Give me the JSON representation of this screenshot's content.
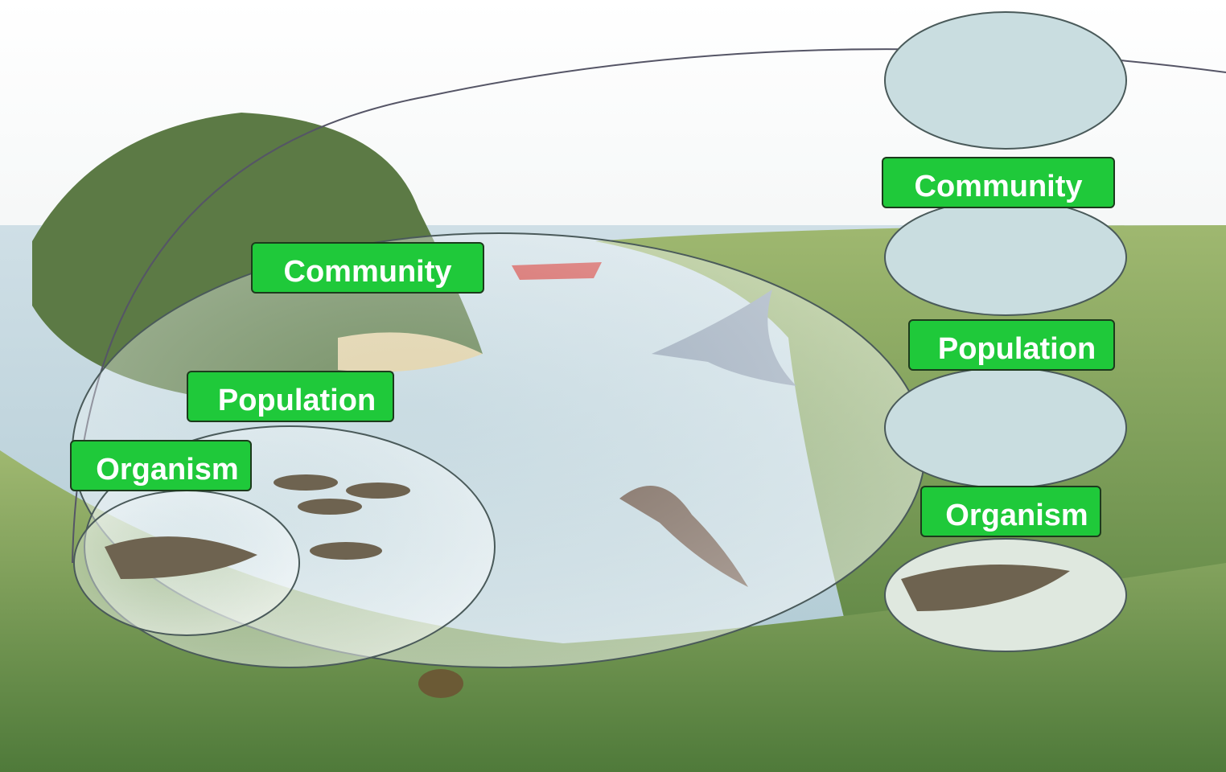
{
  "left_labels": [
    "Community",
    "Population",
    "Organism"
  ],
  "right_labels": [
    "Community",
    "Population",
    "Organism"
  ]
}
